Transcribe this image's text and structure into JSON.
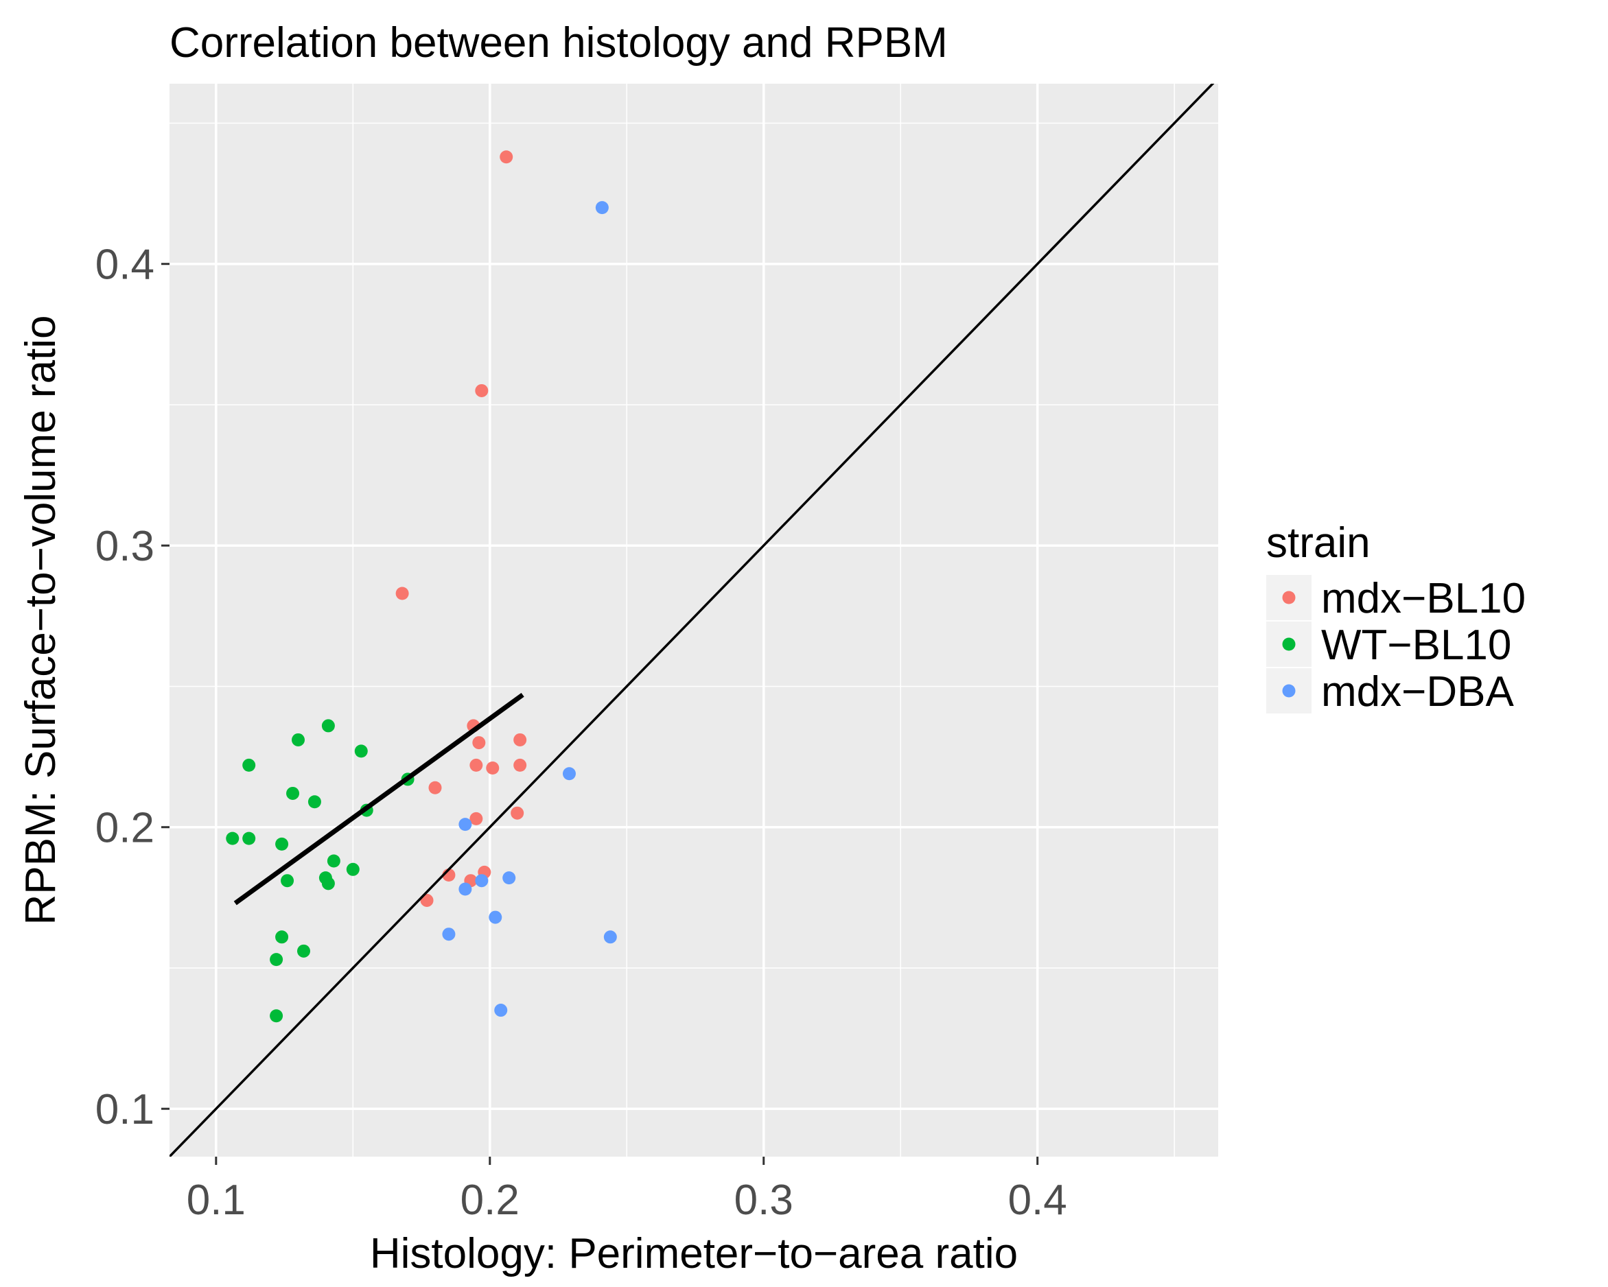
{
  "chart_data": {
    "type": "scatter",
    "title": "Correlation between histology and RPBM",
    "xlabel": "Histology: Perimeter−to−area ratio",
    "ylabel": "RPBM: Surface−to−volume ratio",
    "xlim": [
      0.083,
      0.466
    ],
    "ylim": [
      0.083,
      0.464
    ],
    "x_ticks": [
      0.1,
      0.2,
      0.3,
      0.4
    ],
    "x_tick_labels": [
      "0.1",
      "0.2",
      "0.3",
      "0.4"
    ],
    "y_ticks": [
      0.1,
      0.2,
      0.3,
      0.4
    ],
    "y_tick_labels": [
      "0.1",
      "0.2",
      "0.3",
      "0.4"
    ],
    "x_minor_ticks": [
      0.15,
      0.25,
      0.35,
      0.45
    ],
    "y_minor_ticks": [
      0.15,
      0.25,
      0.35,
      0.45
    ],
    "grid": true,
    "legend": {
      "title": "strain",
      "position": "right"
    },
    "series": [
      {
        "name": "mdx−BL10",
        "color": "#F8766D",
        "points": [
          [
            0.206,
            0.438
          ],
          [
            0.197,
            0.355
          ],
          [
            0.168,
            0.283
          ],
          [
            0.194,
            0.236
          ],
          [
            0.196,
            0.23
          ],
          [
            0.211,
            0.231
          ],
          [
            0.195,
            0.222
          ],
          [
            0.201,
            0.221
          ],
          [
            0.211,
            0.222
          ],
          [
            0.18,
            0.214
          ],
          [
            0.21,
            0.205
          ],
          [
            0.195,
            0.203
          ],
          [
            0.185,
            0.183
          ],
          [
            0.193,
            0.181
          ],
          [
            0.198,
            0.184
          ],
          [
            0.177,
            0.174
          ]
        ]
      },
      {
        "name": "WT−BL10",
        "color": "#00BA38",
        "points": [
          [
            0.141,
            0.236
          ],
          [
            0.13,
            0.231
          ],
          [
            0.153,
            0.227
          ],
          [
            0.112,
            0.222
          ],
          [
            0.128,
            0.212
          ],
          [
            0.136,
            0.209
          ],
          [
            0.17,
            0.217
          ],
          [
            0.155,
            0.206
          ],
          [
            0.106,
            0.196
          ],
          [
            0.112,
            0.196
          ],
          [
            0.124,
            0.194
          ],
          [
            0.143,
            0.188
          ],
          [
            0.15,
            0.185
          ],
          [
            0.14,
            0.182
          ],
          [
            0.126,
            0.181
          ],
          [
            0.141,
            0.18
          ],
          [
            0.124,
            0.161
          ],
          [
            0.132,
            0.156
          ],
          [
            0.122,
            0.153
          ],
          [
            0.122,
            0.133
          ]
        ]
      },
      {
        "name": "mdx−DBA",
        "color": "#619CFF",
        "points": [
          [
            0.241,
            0.42
          ],
          [
            0.229,
            0.219
          ],
          [
            0.191,
            0.201
          ],
          [
            0.207,
            0.182
          ],
          [
            0.197,
            0.181
          ],
          [
            0.191,
            0.178
          ],
          [
            0.202,
            0.168
          ],
          [
            0.185,
            0.162
          ],
          [
            0.244,
            0.161
          ],
          [
            0.204,
            0.135
          ]
        ]
      }
    ],
    "lines": [
      {
        "kind": "identity",
        "slope": 1,
        "intercept": 0,
        "color": "#000000",
        "thick": false
      },
      {
        "kind": "fit",
        "x": [
          0.107,
          0.212
        ],
        "y": [
          0.173,
          0.247
        ],
        "color": "#000000",
        "thick": true
      }
    ]
  }
}
